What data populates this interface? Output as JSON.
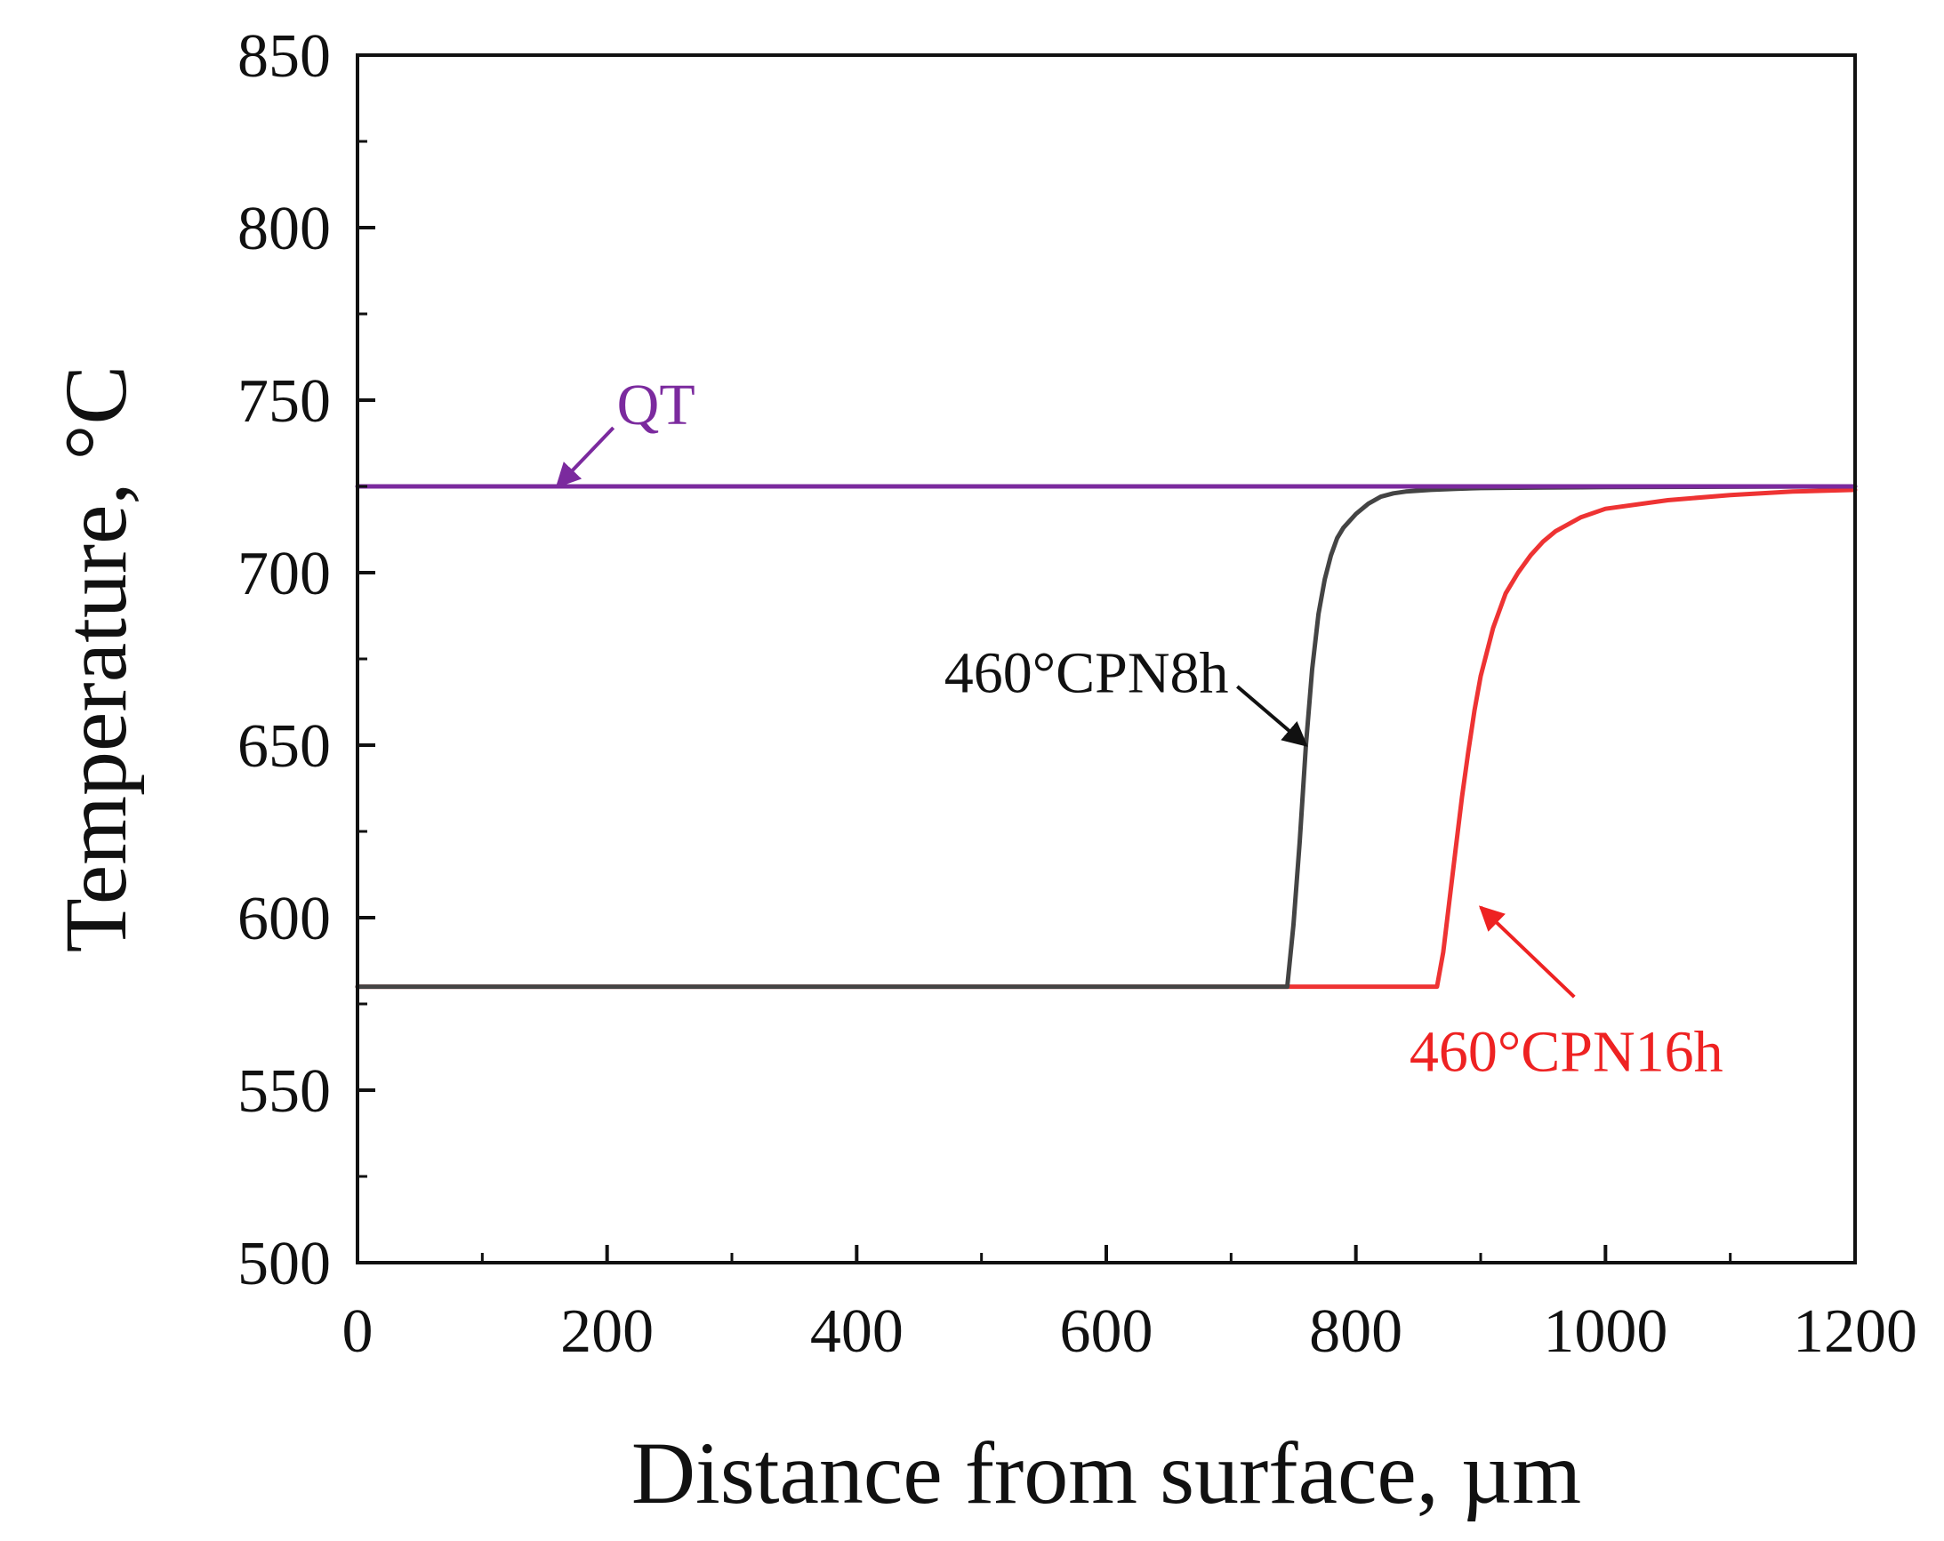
{
  "chart_data": {
    "type": "line",
    "title": "",
    "xlabel": "Distance from surface, µm",
    "ylabel": "Temperature, °C",
    "xlim": [
      0,
      1200
    ],
    "ylim": [
      500,
      850
    ],
    "x_ticks": [
      0,
      200,
      400,
      600,
      800,
      1000,
      1200
    ],
    "x_tick_labels": [
      "0",
      "200",
      "400",
      "600",
      "800",
      "1000",
      "1200"
    ],
    "y_ticks": [
      500,
      550,
      600,
      650,
      700,
      750,
      800,
      850
    ],
    "y_tick_labels": [
      "500",
      "550",
      "600",
      "650",
      "700",
      "750",
      "800",
      "850"
    ],
    "grid": false,
    "legend": "none",
    "series": [
      {
        "name": "QT",
        "color": "#7b2a9e",
        "x": [
          0,
          200,
          400,
          600,
          800,
          1000,
          1200
        ],
        "values": [
          725,
          725,
          725,
          725,
          725,
          725,
          725
        ]
      },
      {
        "name": "460°CPN8h",
        "color": "#444444",
        "x": [
          0,
          200,
          400,
          600,
          745,
          750,
          755,
          760,
          765,
          770,
          775,
          780,
          785,
          790,
          800,
          810,
          820,
          830,
          840,
          860,
          880,
          900,
          950,
          1000,
          1100,
          1200
        ],
        "values": [
          580,
          580,
          580,
          580,
          580,
          598,
          622,
          650,
          672,
          688,
          698,
          705,
          710,
          713,
          717,
          720,
          722,
          723,
          723.5,
          724,
          724.3,
          724.5,
          724.7,
          724.8,
          724.9,
          725
        ]
      },
      {
        "name": "460°CPN16h",
        "color": "#ee3333",
        "x": [
          0,
          200,
          400,
          600,
          800,
          865,
          870,
          875,
          880,
          885,
          890,
          895,
          900,
          910,
          920,
          930,
          940,
          950,
          960,
          980,
          1000,
          1050,
          1100,
          1150,
          1200
        ],
        "values": [
          580,
          580,
          580,
          580,
          580,
          580,
          590,
          605,
          620,
          635,
          648,
          660,
          670,
          684,
          694,
          700,
          705,
          709,
          712,
          716,
          718.5,
          721,
          722.5,
          723.5,
          724
        ]
      }
    ],
    "annotations": [
      {
        "text": "QT",
        "color": "#7b2a9e",
        "arrow_to_x": 160,
        "arrow_to_y": 725,
        "arrow_from_x": 205,
        "arrow_from_y": 742
      },
      {
        "text": "460°CPN8h",
        "color": "#111111",
        "arrow_to_x": 760,
        "arrow_to_y": 650,
        "arrow_from_x": 705,
        "arrow_from_y": 667
      },
      {
        "text": "460°CPN16h",
        "color": "#ee2222",
        "arrow_to_x": 900,
        "arrow_to_y": 603,
        "arrow_from_x": 975,
        "arrow_from_y": 577
      }
    ]
  }
}
